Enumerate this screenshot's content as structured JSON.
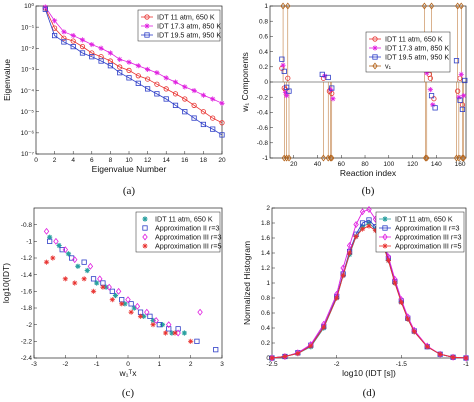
{
  "colors": {
    "red": "#e8312f",
    "magenta": "#e020e0",
    "blue": "#2f3fc8",
    "brown": "#b5651d",
    "teal": "#2aa0a0"
  },
  "chart_data": [
    {
      "type": "line",
      "label": "(a)",
      "xlabel": "Eigenvalue Number",
      "ylabel": "Eigenvalue",
      "xlim": [
        0,
        20
      ],
      "ylim_log": [
        -7,
        0
      ],
      "xticks": [
        "0",
        "2",
        "4",
        "6",
        "8",
        "10",
        "12",
        "14",
        "16",
        "18",
        "20"
      ],
      "yticks": [
        "10⁰",
        "10⁻¹",
        "10⁻²",
        "10⁻³",
        "10⁻⁴",
        "10⁻⁵",
        "10⁻⁶",
        "10⁻⁷"
      ],
      "legend_position": "top-right",
      "x": [
        1,
        2,
        3,
        4,
        5,
        6,
        7,
        8,
        9,
        10,
        11,
        12,
        13,
        14,
        15,
        16,
        17,
        18,
        19,
        20
      ],
      "series": [
        {
          "name": "IDT 11 atm, 650 K",
          "color": "#e8312f",
          "marker": "circle",
          "values": [
            0.8,
            0.09,
            0.03,
            0.022,
            0.012,
            0.006,
            0.004,
            0.0025,
            0.0013,
            0.0009,
            0.0005,
            0.00035,
            0.0002,
            0.00012,
            7e-05,
            4e-05,
            2e-05,
            1e-05,
            5e-06,
            3e-06
          ]
        },
        {
          "name": "IDT 17.3 atm, 850 K",
          "color": "#e020e0",
          "marker": "star",
          "values": [
            0.9,
            0.2,
            0.06,
            0.04,
            0.025,
            0.015,
            0.01,
            0.006,
            0.003,
            0.0022,
            0.0015,
            0.001,
            0.0007,
            0.0004,
            0.00025,
            0.00015,
            0.0001,
            6e-05,
            4e-05,
            2.5e-05
          ]
        },
        {
          "name": "IDT 19.5 atm, 950 K",
          "color": "#2f3fc8",
          "marker": "square",
          "values": [
            0.7,
            0.04,
            0.02,
            0.012,
            0.006,
            0.004,
            0.0025,
            0.0015,
            0.0007,
            0.0004,
            0.00022,
            0.00012,
            7e-05,
            4e-05,
            2e-05,
            1e-05,
            5e-06,
            2.5e-06,
            1.5e-06,
            8e-07
          ]
        }
      ]
    },
    {
      "type": "scatter",
      "label": "(b)",
      "xlabel": "Reaction index",
      "ylabel": "w₁ Components",
      "xlim": [
        0,
        165
      ],
      "ylim": [
        -1,
        1
      ],
      "xticks": [
        "20",
        "40",
        "60",
        "80",
        "100",
        "120",
        "140",
        "160"
      ],
      "yticks": [
        "-1",
        "-0.8",
        "-0.6",
        "-0.4",
        "-0.2",
        "0",
        "0.2",
        "0.4",
        "0.6",
        "0.8",
        "1"
      ],
      "legend_position": "center-right",
      "series": [
        {
          "name": "IDT 11 atm, 650 K",
          "color": "#e8312f",
          "marker": "circle",
          "points": [
            [
              10,
              0.18
            ],
            [
              12,
              -0.08
            ],
            [
              13,
              -0.1
            ],
            [
              15,
              0.05
            ],
            [
              45,
              0.05
            ],
            [
              50,
              -0.12
            ],
            [
              52,
              -0.15
            ],
            [
              131,
              0.22
            ],
            [
              134,
              0.1
            ],
            [
              135,
              0.05
            ],
            [
              138,
              -0.22
            ],
            [
              158,
              -0.12
            ],
            [
              160,
              0.05
            ],
            [
              162,
              -0.3
            ]
          ]
        },
        {
          "name": "IDT 17.3 atm, 850 K",
          "color": "#e020e0",
          "marker": "star",
          "points": [
            [
              11,
              0.22
            ],
            [
              13,
              -0.14
            ],
            [
              14,
              -0.18
            ],
            [
              46,
              0.08
            ],
            [
              51,
              -0.1
            ],
            [
              53,
              -0.22
            ],
            [
              132,
              0.12
            ],
            [
              135,
              -0.1
            ],
            [
              137,
              -0.3
            ],
            [
              159,
              -0.2
            ],
            [
              161,
              0.1
            ],
            [
              163,
              -0.18
            ]
          ]
        },
        {
          "name": "IDT 19.5 atm, 950 K",
          "color": "#2f3fc8",
          "marker": "square",
          "points": [
            [
              10,
              0.3
            ],
            [
              12,
              0.14
            ],
            [
              14,
              -0.07
            ],
            [
              16,
              -0.12
            ],
            [
              44,
              0.1
            ],
            [
              49,
              0.06
            ],
            [
              52,
              -0.08
            ],
            [
              131,
              0.34
            ],
            [
              133,
              0.18
            ],
            [
              136,
              -0.18
            ],
            [
              139,
              -0.34
            ],
            [
              157,
              0.28
            ],
            [
              160,
              -0.24
            ],
            [
              162,
              -0.36
            ],
            [
              164,
              0.02
            ]
          ]
        },
        {
          "name": "v₁",
          "color": "#b5651d",
          "marker": "diamond",
          "points": [
            [
              11,
              1
            ],
            [
              12,
              -1
            ],
            [
              14,
              -1
            ],
            [
              15,
              1
            ],
            [
              16,
              -1
            ],
            [
              45,
              -1
            ],
            [
              49,
              -1
            ],
            [
              51,
              -1
            ],
            [
              52,
              -1
            ],
            [
              130,
              1
            ],
            [
              131,
              -1
            ],
            [
              132,
              -1
            ],
            [
              136,
              1
            ],
            [
              157,
              -1
            ],
            [
              158,
              1
            ],
            [
              159,
              -1
            ],
            [
              161,
              1
            ],
            [
              162,
              -1
            ],
            [
              163,
              -1
            ]
          ]
        }
      ]
    },
    {
      "type": "scatter",
      "label": "(c)",
      "xlabel": "w₁ᵀx",
      "ylabel": "log10(IDT)",
      "xlim": [
        -3,
        3
      ],
      "ylim": [
        -2.4,
        -0.6
      ],
      "xticks": [
        "-3",
        "-2",
        "-1",
        "0",
        "1",
        "2",
        "3"
      ],
      "yticks": [
        "-2.4",
        "-2.2",
        "-2",
        "-1.8",
        "-1.6",
        "-1.4",
        "-1.2",
        "-1",
        "-0.8"
      ],
      "legend_position": "top-right",
      "series": [
        {
          "name": "IDT 11 atm, 650 K",
          "color": "#2aa0a0",
          "marker": "asterisk",
          "points": [
            [
              -2.5,
              -0.95
            ],
            [
              -2.2,
              -1.05
            ],
            [
              -1.9,
              -1.15
            ],
            [
              -1.6,
              -1.3
            ],
            [
              -1.3,
              -1.35
            ],
            [
              -1.0,
              -1.5
            ],
            [
              -0.7,
              -1.55
            ],
            [
              -0.4,
              -1.65
            ],
            [
              -0.1,
              -1.75
            ],
            [
              0.2,
              -1.8
            ],
            [
              0.5,
              -1.9
            ],
            [
              0.8,
              -1.95
            ],
            [
              1.1,
              -2.0
            ],
            [
              1.4,
              -2.1
            ],
            [
              1.8,
              -2.1
            ]
          ]
        },
        {
          "name": "Approximation II r=3",
          "color": "#2f3fc8",
          "marker": "square",
          "points": [
            [
              -2.5,
              -1.0
            ],
            [
              -2.1,
              -1.1
            ],
            [
              -1.8,
              -1.2
            ],
            [
              -1.4,
              -1.25
            ],
            [
              -1.1,
              -1.45
            ],
            [
              -0.8,
              -1.5
            ],
            [
              -0.5,
              -1.6
            ],
            [
              -0.2,
              -1.7
            ],
            [
              0.1,
              -1.75
            ],
            [
              0.4,
              -1.85
            ],
            [
              0.7,
              -1.9
            ],
            [
              1.0,
              -2.0
            ],
            [
              1.3,
              -2.05
            ],
            [
              1.6,
              -2.05
            ],
            [
              2.2,
              -2.2
            ],
            [
              2.8,
              -2.3
            ]
          ]
        },
        {
          "name": "Approximation III r=3",
          "color": "#e020e0",
          "marker": "diamond",
          "points": [
            [
              -2.6,
              -0.88
            ],
            [
              -2.3,
              -1.0
            ],
            [
              -2.0,
              -1.1
            ],
            [
              -1.7,
              -1.22
            ],
            [
              -1.2,
              -1.3
            ],
            [
              -0.9,
              -1.45
            ],
            [
              -0.6,
              -1.55
            ],
            [
              -0.3,
              -1.6
            ],
            [
              0.0,
              -1.7
            ],
            [
              0.3,
              -1.78
            ],
            [
              0.6,
              -1.85
            ],
            [
              0.9,
              -1.95
            ],
            [
              1.3,
              -2.0
            ],
            [
              1.6,
              -2.1
            ],
            [
              2.3,
              -1.85
            ]
          ]
        },
        {
          "name": "Approximation III r=5",
          "color": "#e8312f",
          "marker": "star",
          "points": [
            [
              -2.6,
              -1.25
            ],
            [
              -2.4,
              -1.2
            ],
            [
              -2.0,
              -1.45
            ],
            [
              -1.7,
              -1.5
            ],
            [
              -1.4,
              -1.45
            ],
            [
              -1.1,
              -1.6
            ],
            [
              -0.8,
              -1.55
            ],
            [
              -0.5,
              -1.7
            ],
            [
              -0.2,
              -1.75
            ],
            [
              0.1,
              -1.85
            ],
            [
              0.4,
              -1.9
            ],
            [
              0.8,
              -2.0
            ],
            [
              1.2,
              -2.1
            ],
            [
              1.5,
              -2.1
            ],
            [
              2.0,
              -2.2
            ]
          ]
        }
      ]
    },
    {
      "type": "line",
      "label": "(d)",
      "xlabel": "log10 (IDT [s])",
      "ylabel": "Normalized Histogram",
      "xlim": [
        -2.5,
        -1
      ],
      "ylim": [
        0,
        2
      ],
      "xticks": [
        "-2.5",
        "-2",
        "-1.5",
        "-1"
      ],
      "yticks": [
        "0",
        "0.2",
        "0.4",
        "0.6",
        "0.8",
        "1",
        "1.2",
        "1.4",
        "1.6",
        "1.8",
        "2"
      ],
      "legend_position": "top-right",
      "x": [
        -2.5,
        -2.4,
        -2.3,
        -2.2,
        -2.1,
        -2.0,
        -1.95,
        -1.9,
        -1.85,
        -1.8,
        -1.75,
        -1.7,
        -1.65,
        -1.6,
        -1.55,
        -1.5,
        -1.45,
        -1.4,
        -1.3,
        -1.2,
        -1.1,
        -1.0
      ],
      "series": [
        {
          "name": "IDT 11 atm, 650 K",
          "color": "#2aa0a0",
          "marker": "asterisk",
          "values": [
            0.0,
            0.02,
            0.06,
            0.15,
            0.4,
            0.8,
            1.1,
            1.38,
            1.62,
            1.75,
            1.8,
            1.72,
            1.55,
            1.3,
            1.0,
            0.75,
            0.52,
            0.35,
            0.15,
            0.05,
            0.01,
            0.0
          ]
        },
        {
          "name": "Approximation II r=3",
          "color": "#2f3fc8",
          "marker": "square",
          "values": [
            0.0,
            0.02,
            0.07,
            0.17,
            0.42,
            0.82,
            1.12,
            1.42,
            1.65,
            1.8,
            1.84,
            1.75,
            1.58,
            1.33,
            1.02,
            0.76,
            0.53,
            0.36,
            0.15,
            0.05,
            0.01,
            0.0
          ]
        },
        {
          "name": "Approximation III r=3",
          "color": "#e020e0",
          "marker": "diamond",
          "values": [
            0.0,
            0.02,
            0.07,
            0.18,
            0.45,
            0.85,
            1.2,
            1.5,
            1.78,
            1.95,
            1.98,
            1.85,
            1.62,
            1.35,
            1.05,
            0.78,
            0.55,
            0.37,
            0.16,
            0.05,
            0.01,
            0.0
          ]
        },
        {
          "name": "Approximation III r=5",
          "color": "#e8312f",
          "marker": "star",
          "values": [
            0.0,
            0.02,
            0.06,
            0.16,
            0.41,
            0.8,
            1.1,
            1.4,
            1.62,
            1.72,
            1.76,
            1.7,
            1.55,
            1.3,
            1.0,
            0.74,
            0.52,
            0.35,
            0.15,
            0.05,
            0.01,
            0.0
          ]
        }
      ]
    }
  ]
}
